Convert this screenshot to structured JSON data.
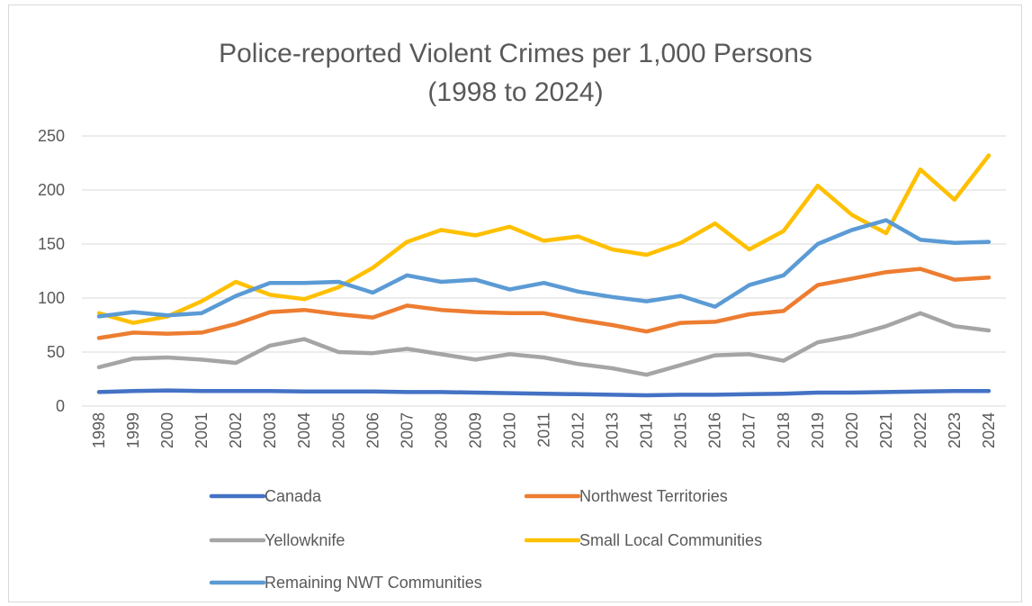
{
  "chart_data": {
    "type": "line",
    "title_line1": "Police-reported Violent Crimes per 1,000 Persons",
    "title_line2": "(1998 to 2024)",
    "xlabel": "",
    "ylabel": "",
    "ylim": [
      0,
      250
    ],
    "yticks": [
      0,
      50,
      100,
      150,
      200,
      250
    ],
    "grid": true,
    "legend_position": "bottom",
    "categories": [
      "1998",
      "1999",
      "2000",
      "2001",
      "2002",
      "2003",
      "2004",
      "2005",
      "2006",
      "2007",
      "2008",
      "2009",
      "2010",
      "2011",
      "2012",
      "2013",
      "2014",
      "2015",
      "2016",
      "2017",
      "2018",
      "2019",
      "2020",
      "2021",
      "2022",
      "2023",
      "2024"
    ],
    "series": [
      {
        "name": "Canada",
        "color": "#4472c4",
        "values": [
          13,
          14,
          14.5,
          14,
          14,
          14,
          13.5,
          13.5,
          13.5,
          13,
          13,
          12.5,
          12,
          11.5,
          11,
          10.5,
          10,
          10.5,
          10.5,
          11,
          11.5,
          12.5,
          12.5,
          13,
          13.5,
          14,
          14
        ]
      },
      {
        "name": "Northwest Territories",
        "color": "#ed7d31",
        "values": [
          63,
          68,
          67,
          68,
          76,
          87,
          89,
          85,
          82,
          93,
          89,
          87,
          86,
          86,
          80,
          75,
          69,
          77,
          78,
          85,
          88,
          112,
          118,
          124,
          127,
          117,
          119
        ]
      },
      {
        "name": "Yellowknife",
        "color": "#a5a5a5",
        "values": [
          36,
          44,
          45,
          43,
          40,
          56,
          62,
          50,
          49,
          53,
          48,
          43,
          48,
          45,
          39,
          35,
          29,
          38,
          47,
          48,
          42,
          59,
          65,
          74,
          86,
          74,
          70
        ]
      },
      {
        "name": "Small Local Communities",
        "color": "#ffc000",
        "values": [
          86,
          77,
          83,
          97,
          115,
          103,
          99,
          110,
          128,
          152,
          163,
          158,
          166,
          153,
          157,
          145,
          140,
          151,
          169,
          145,
          162,
          204,
          177,
          160,
          219,
          191,
          232
        ]
      },
      {
        "name": "Remaining NWT Communities",
        "color": "#5b9bd5",
        "values": [
          83,
          87,
          84,
          86,
          102,
          114,
          114,
          115,
          105,
          121,
          115,
          117,
          108,
          114,
          106,
          101,
          97,
          102,
          92,
          112,
          121,
          150,
          163,
          172,
          154,
          151,
          152
        ]
      }
    ]
  }
}
